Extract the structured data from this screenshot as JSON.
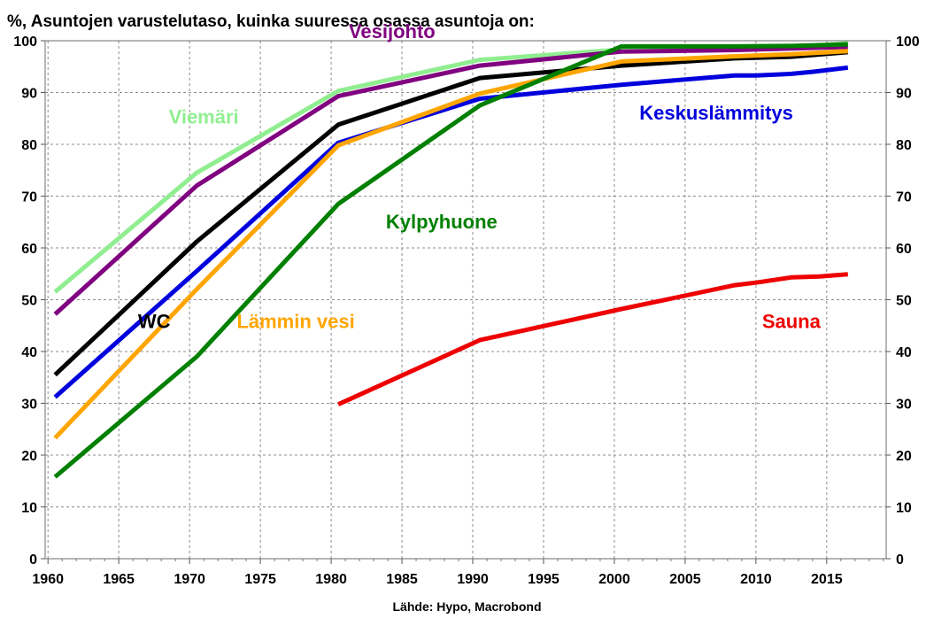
{
  "chart_data": {
    "type": "line",
    "title": "%, Asuntojen varustelutaso, kuinka suuressa osassa asuntoja on:",
    "source": "Lähde: Hypo, Macrobond",
    "xlabel": "",
    "ylabel": "",
    "xlim": [
      1959.8,
      2019.2
    ],
    "ylim": [
      0,
      100
    ],
    "x_ticks": [
      1960,
      1965,
      1970,
      1975,
      1980,
      1985,
      1990,
      1995,
      2000,
      2005,
      2010,
      2015
    ],
    "y_ticks": [
      0,
      10,
      20,
      30,
      40,
      50,
      60,
      70,
      80,
      90,
      100
    ],
    "y_axis_both_sides": true,
    "grid": true,
    "legend": "inline labels",
    "series": [
      {
        "name": "Viemäri",
        "color": "#90EE90",
        "label_pos": [
          1971,
          84
        ],
        "points": [
          [
            1960.5,
            51.5
          ],
          [
            1970.5,
            74.5
          ],
          [
            1980.5,
            90.3
          ],
          [
            1990.5,
            96.3
          ],
          [
            2000.5,
            98.3
          ],
          [
            2008.5,
            98.5
          ],
          [
            2012.5,
            98.7
          ],
          [
            2016.5,
            99.5
          ]
        ]
      },
      {
        "name": "Vesijohto",
        "color": "#800080",
        "label_pos": [
          1984.3,
          100.5
        ],
        "points": [
          [
            1960.5,
            47.2
          ],
          [
            1970.5,
            72.0
          ],
          [
            1980.5,
            89.3
          ],
          [
            1990.5,
            95.2
          ],
          [
            2000.5,
            97.9
          ],
          [
            2008.5,
            98.2
          ],
          [
            2012.5,
            98.5
          ],
          [
            2016.5,
            98.8
          ]
        ]
      },
      {
        "name": "WC",
        "color": "#000000",
        "label_pos": [
          1967.5,
          44.5
        ],
        "points": [
          [
            1960.5,
            35.5
          ],
          [
            1970.5,
            61.2
          ],
          [
            1980.5,
            83.8
          ],
          [
            1990.5,
            92.8
          ],
          [
            2000.5,
            95.2
          ],
          [
            2008.5,
            96.6
          ],
          [
            2012.5,
            96.9
          ],
          [
            2016.5,
            97.8
          ]
        ]
      },
      {
        "name": "Keskuslämmitys",
        "color": "#0000DD",
        "label_pos": [
          2007.2,
          84.8
        ],
        "points": [
          [
            1960.5,
            31.2
          ],
          [
            1970.5,
            55.5
          ],
          [
            1980.5,
            80.3
          ],
          [
            1990.5,
            88.8
          ],
          [
            2000.5,
            91.5
          ],
          [
            2008.5,
            93.3
          ],
          [
            2010,
            93.3
          ],
          [
            2012.5,
            93.6
          ],
          [
            2014,
            94.0
          ],
          [
            2016.5,
            94.8
          ]
        ]
      },
      {
        "name": "Lämmin vesi",
        "color": "#FFA500",
        "label_pos": [
          1977.5,
          44.5
        ],
        "points": [
          [
            1960.5,
            23.3
          ],
          [
            1970.5,
            52.0
          ],
          [
            1980.5,
            79.8
          ],
          [
            1990.5,
            89.8
          ],
          [
            2000.5,
            96.0
          ],
          [
            2008.5,
            97.0
          ],
          [
            2012.5,
            97.4
          ],
          [
            2016.5,
            98.0
          ]
        ]
      },
      {
        "name": "Kylpyhuone",
        "color": "#008000",
        "label_pos": [
          1987.8,
          63.8
        ],
        "points": [
          [
            1960.5,
            15.8
          ],
          [
            1970.5,
            39.0
          ],
          [
            1980.5,
            68.5
          ],
          [
            1990.5,
            87.5
          ],
          [
            2000.5,
            98.9
          ],
          [
            2008.5,
            98.9
          ],
          [
            2012.5,
            99.0
          ],
          [
            2016.5,
            99.3
          ]
        ]
      },
      {
        "name": "Sauna",
        "color": "#EE0000",
        "label_pos": [
          2012.5,
          44.5
        ],
        "points": [
          [
            1980.5,
            29.8
          ],
          [
            1990.5,
            42.2
          ],
          [
            2000.5,
            48.2
          ],
          [
            2008.5,
            52.8
          ],
          [
            2010,
            53.3
          ],
          [
            2012.5,
            54.3
          ],
          [
            2014.5,
            54.5
          ],
          [
            2016.5,
            54.9
          ]
        ]
      }
    ]
  }
}
